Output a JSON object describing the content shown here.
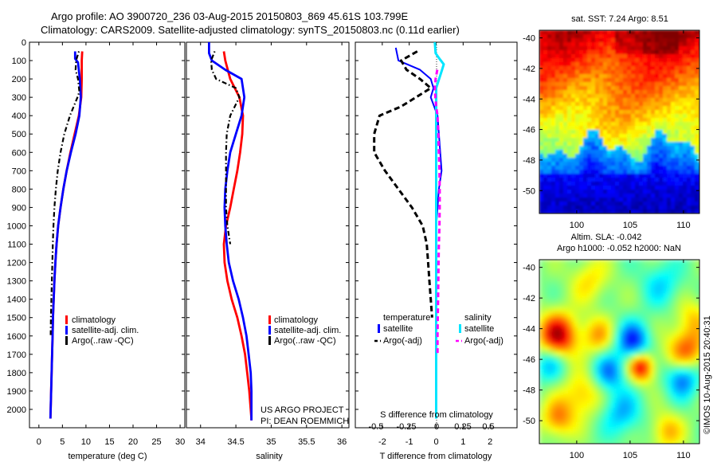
{
  "header": {
    "title_line1": "Argo profile: AO 3900720_236 03-Aug-2015 20150803_869 45.61S 103.799E",
    "title_line2": "Climatology: CARS2009. Satellite-adjusted climatology: synTS_20150803.nc (0.11d earlier)"
  },
  "side_stamp": "©IMOS 10-Aug-2015 20:40:31",
  "project_note": {
    "line1": "US ARGO PROJECT",
    "line2": "PI: DEAN ROEMMICH"
  },
  "colors": {
    "climatology": "#ff0000",
    "satellite": "#0000ff",
    "argo": "#000000",
    "sal_satellite": "#00e5ff",
    "sal_argo": "#ff00ff"
  },
  "chart_data": [
    {
      "type": "line",
      "panel": "temperature",
      "xlabel": "temperature (deg C)",
      "ylabel": "",
      "xlim": [
        -2,
        31
      ],
      "ylim": [
        2100,
        0
      ],
      "xticks": [
        0,
        5,
        10,
        15,
        20,
        25,
        30
      ],
      "yticks": [
        0,
        100,
        200,
        300,
        400,
        500,
        600,
        700,
        800,
        900,
        1000,
        1100,
        1200,
        1300,
        1400,
        1500,
        1600,
        1700,
        1800,
        1900,
        2000
      ],
      "legend": [
        "climatology",
        "satellite-adj. clim.",
        "Argo(..raw -QC)"
      ],
      "legend_position": "lower-right",
      "series": [
        {
          "name": "climatology",
          "x": [
            9.2,
            9.1,
            9.1,
            9.0,
            8.5,
            7.6,
            6.7,
            5.9,
            5.2,
            4.6,
            4.1,
            3.75,
            3.5,
            3.3,
            3.15,
            3.0,
            2.9,
            2.8,
            2.7,
            2.6,
            2.5,
            2.45
          ],
          "y": [
            50,
            100,
            200,
            300,
            400,
            500,
            600,
            700,
            800,
            900,
            1000,
            1100,
            1200,
            1300,
            1400,
            1500,
            1600,
            1700,
            1800,
            1900,
            2000,
            2050
          ]
        },
        {
          "name": "satellite-adj. clim.",
          "x": [
            7.7,
            7.7,
            8.3,
            8.7,
            8.9,
            8.6,
            7.8,
            6.8,
            5.9,
            5.2,
            4.6,
            4.1,
            3.75,
            3.5,
            3.3,
            3.15,
            3.0,
            2.9,
            2.8,
            2.7,
            2.6,
            2.5,
            2.45
          ],
          "y": [
            50,
            90,
            110,
            200,
            300,
            400,
            500,
            600,
            700,
            800,
            900,
            1000,
            1100,
            1200,
            1300,
            1400,
            1500,
            1600,
            1700,
            1800,
            1900,
            2000,
            2050
          ]
        },
        {
          "name": "Argo(..raw -QC)",
          "x": [
            8.5,
            7.9,
            7.8,
            8.3,
            8.6,
            8.2,
            6.6,
            5.4,
            4.6,
            4.0,
            3.6,
            3.3,
            3.1,
            2.95,
            2.85,
            2.75,
            2.65,
            2.55,
            2.5
          ],
          "y": [
            50,
            100,
            150,
            200,
            270,
            300,
            400,
            500,
            600,
            700,
            800,
            900,
            1000,
            1100,
            1200,
            1300,
            1400,
            1500,
            1600
          ]
        }
      ]
    },
    {
      "type": "line",
      "panel": "salinity",
      "xlabel": "salinity",
      "ylabel": "",
      "xlim": [
        33.8,
        36.1
      ],
      "ylim": [
        2100,
        0
      ],
      "xticks": [
        34,
        34.5,
        35,
        35.5,
        36
      ],
      "legend": [
        "climatology",
        "satellite-adj. clim.",
        "Argo(..raw -QC)"
      ],
      "legend_position": "lower-right",
      "series": [
        {
          "name": "climatology",
          "x": [
            34.33,
            34.35,
            34.42,
            34.55,
            34.6,
            34.59,
            34.56,
            34.52,
            34.47,
            34.42,
            34.36,
            34.33,
            34.34,
            34.38,
            34.44,
            34.52,
            34.58,
            34.63,
            34.66,
            34.69,
            34.71,
            34.72,
            34.72
          ],
          "y": [
            50,
            100,
            200,
            300,
            400,
            500,
            600,
            700,
            800,
            900,
            1000,
            1100,
            1200,
            1300,
            1400,
            1500,
            1600,
            1700,
            1800,
            1900,
            2000,
            2050,
            2060
          ]
        },
        {
          "name": "satellite-adj. clim.",
          "x": [
            34.12,
            34.12,
            34.16,
            34.35,
            34.58,
            34.62,
            34.58,
            34.5,
            34.42,
            34.38,
            34.35,
            34.34,
            34.35,
            34.37,
            34.4,
            34.46,
            34.54,
            34.6,
            34.65,
            34.68,
            34.71,
            34.72,
            34.72,
            34.72
          ],
          "y": [
            0,
            60,
            100,
            150,
            200,
            300,
            400,
            500,
            600,
            700,
            800,
            900,
            1000,
            1100,
            1200,
            1300,
            1400,
            1500,
            1600,
            1700,
            1800,
            1900,
            2000,
            2060
          ]
        },
        {
          "name": "Argo(..raw -QC)",
          "x": [
            34.2,
            34.15,
            34.16,
            34.22,
            34.5,
            34.55,
            34.42,
            34.37,
            34.36,
            34.36,
            34.36,
            34.36,
            34.38,
            34.42
          ],
          "y": [
            50,
            100,
            150,
            200,
            250,
            300,
            400,
            500,
            600,
            700,
            800,
            900,
            1000,
            1100
          ]
        }
      ]
    },
    {
      "type": "line",
      "panel": "differences",
      "xlabel": "T difference from climatology",
      "xlabel_top": "S difference from climatology",
      "xlim": [
        -3,
        3
      ],
      "ylim": [
        2100,
        0
      ],
      "xticks": [
        -2,
        -1,
        0,
        1,
        2
      ],
      "xticks_s": [
        -0.5,
        -0.25,
        0,
        0.25,
        0.5
      ],
      "legend_headers": [
        "temperature",
        "salinity"
      ],
      "legend": [
        "satellite",
        "Argo(-adj)",
        "satellite",
        "Argo(-adj)"
      ],
      "legend_position": "lower",
      "series": [
        {
          "name": "temperature satellite",
          "x": [
            -1.5,
            -1.4,
            -0.6,
            -0.2,
            -0.1,
            -0.2,
            0.05,
            0.1,
            0.15,
            0.2,
            0.1,
            0.05,
            0.0,
            0.0,
            0.0,
            0.0,
            0.0,
            0.0,
            0.0,
            0.0,
            0.0
          ],
          "y": [
            30,
            100,
            150,
            200,
            250,
            300,
            400,
            500,
            600,
            700,
            800,
            900,
            1000,
            1100,
            1200,
            1300,
            1400,
            1500,
            1600,
            1700,
            1800
          ]
        },
        {
          "name": "temperature Argo(-adj)",
          "x": [
            -0.7,
            -1.3,
            -1.1,
            -0.6,
            -0.2,
            -1.3,
            -2.1,
            -2.3,
            -2.3,
            -1.9,
            -1.4,
            -0.9,
            -0.5,
            -0.35,
            -0.3,
            -0.25,
            -0.2,
            -0.15
          ],
          "y": [
            50,
            100,
            150,
            200,
            250,
            350,
            400,
            500,
            600,
            700,
            800,
            900,
            1000,
            1100,
            1200,
            1300,
            1400,
            1500
          ]
        },
        {
          "name": "salinity satellite",
          "x": [
            -0.05,
            -0.02,
            0.12,
            0.28,
            0.22,
            0.0,
            0.0,
            0.0,
            0.0,
            0.0,
            0.0,
            0.0,
            0.0,
            0.0,
            0.0,
            0.0,
            0.0,
            0.0,
            0.0,
            0.0,
            0.0,
            0.0
          ],
          "y": [
            0,
            60,
            90,
            120,
            150,
            250,
            300,
            400,
            500,
            600,
            700,
            800,
            900,
            1000,
            1100,
            1200,
            1300,
            1400,
            1500,
            1600,
            1800,
            2050
          ]
        },
        {
          "name": "salinity Argo(-adj)",
          "x": [
            0.04,
            -0.02,
            -0.05,
            -0.03,
            0.0,
            0.05,
            0.08,
            0.1,
            0.12,
            0.13,
            0.13,
            0.12,
            0.1,
            0.09,
            0.08,
            0.07,
            0.06,
            0.05,
            0.05
          ],
          "y": [
            150,
            200,
            250,
            300,
            350,
            400,
            500,
            600,
            700,
            800,
            900,
            1000,
            1100,
            1200,
            1300,
            1400,
            1500,
            1600,
            1700
          ]
        }
      ]
    },
    {
      "type": "heatmap",
      "panel": "sst_map",
      "title": "sat. SST: 7.24 Argo: 8.51",
      "xlim": [
        96.5,
        111.5
      ],
      "ylim": [
        -51.5,
        -39.5
      ],
      "xticks": [
        100,
        105,
        110
      ],
      "yticks": [
        -40,
        -42,
        -44,
        -46,
        -48,
        -50
      ],
      "argo_position": {
        "lon": 103.799,
        "lat": -45.61
      }
    },
    {
      "type": "heatmap",
      "panel": "sla_map",
      "title": "Altim. SLA: -0.042",
      "subtitle": "Argo h1000: -0.052 h2000: NaN",
      "xlim": [
        96.5,
        111.5
      ],
      "ylim": [
        -51.5,
        -39.5
      ],
      "xticks": [
        100,
        105,
        110
      ],
      "yticks": [
        -40,
        -42,
        -44,
        -46,
        -48,
        -50
      ]
    }
  ]
}
